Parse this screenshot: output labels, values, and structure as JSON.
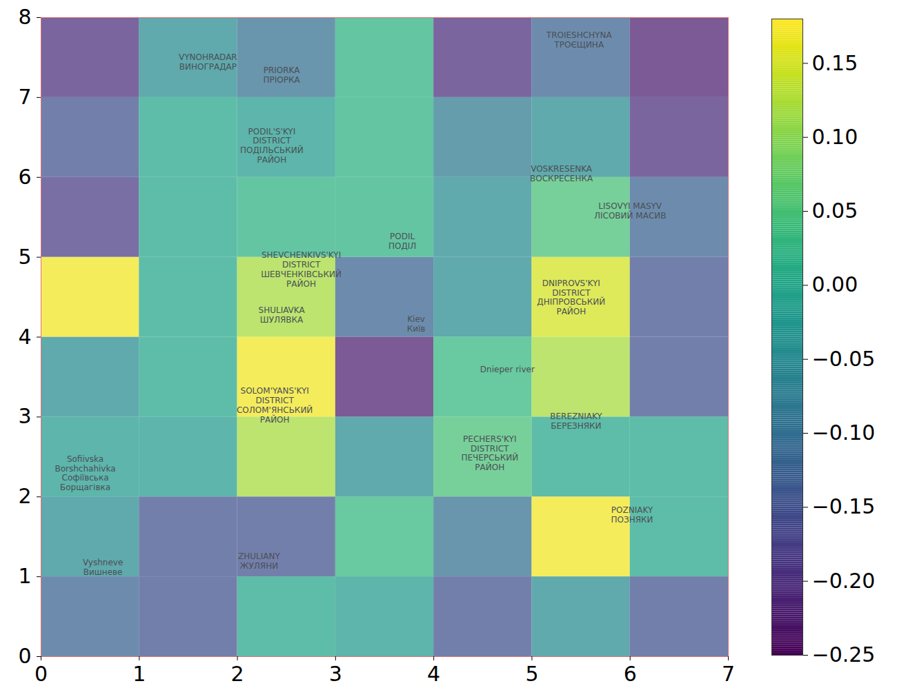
{
  "chart_data": {
    "type": "heatmap",
    "x_edges": [
      0,
      1,
      2,
      3,
      4,
      5,
      6,
      7
    ],
    "y_edges": [
      0,
      1,
      2,
      3,
      4,
      5,
      6,
      7,
      8
    ],
    "xlim": [
      0,
      7
    ],
    "ylim": [
      0,
      8
    ],
    "xticks": [
      0,
      1,
      2,
      3,
      4,
      5,
      6,
      7
    ],
    "yticks": [
      0,
      1,
      2,
      3,
      4,
      5,
      6,
      7,
      8
    ],
    "values": [
      [
        -0.12,
        -0.15,
        0.0,
        -0.02,
        -0.15,
        -0.05,
        -0.15
      ],
      [
        -0.05,
        -0.15,
        -0.15,
        0.03,
        -0.1,
        0.17,
        0.0
      ],
      [
        -0.02,
        -0.02,
        0.12,
        -0.05,
        0.05,
        0.0,
        0.0
      ],
      [
        -0.05,
        0.0,
        0.17,
        -0.22,
        0.03,
        0.12,
        -0.15
      ],
      [
        0.17,
        0.0,
        0.12,
        -0.12,
        -0.05,
        0.15,
        -0.15
      ],
      [
        -0.18,
        0.0,
        0.02,
        0.02,
        -0.05,
        0.05,
        -0.12
      ],
      [
        -0.15,
        0.0,
        -0.02,
        0.02,
        -0.08,
        -0.05,
        -0.2
      ],
      [
        -0.2,
        -0.05,
        -0.1,
        0.02,
        -0.2,
        -0.12,
        -0.22
      ]
    ],
    "colorbar": {
      "range": [
        -0.25,
        0.18
      ],
      "ticks": [
        {
          "value": -0.25,
          "label": "−0.25"
        },
        {
          "value": -0.2,
          "label": "−0.20"
        },
        {
          "value": -0.15,
          "label": "−0.15"
        },
        {
          "value": -0.1,
          "label": "−0.10"
        },
        {
          "value": -0.05,
          "label": "−0.05"
        },
        {
          "value": 0,
          "label": "0.00"
        },
        {
          "value": 0.05,
          "label": "0.05"
        },
        {
          "value": 0.1,
          "label": "0.10"
        },
        {
          "value": 0.15,
          "label": "0.15"
        }
      ]
    },
    "annotations": [
      {
        "text": "Kiev\nКиїв",
        "x": 3.82,
        "y": 4.17
      },
      {
        "text": "PODIL'S'KYI\nDISTRICT\nПОДІЛЬСЬКИЙ\nРАЙОН",
        "x": 2.35,
        "y": 6.4
      },
      {
        "text": "VYNOHRADAR\nВИНОГРАДАР",
        "x": 1.7,
        "y": 7.45
      },
      {
        "text": "PRIORKA\nПРІОРКА",
        "x": 2.45,
        "y": 7.28
      },
      {
        "text": "TROIESHCHYNA\nТРОЄЩИНА",
        "x": 5.48,
        "y": 7.72
      },
      {
        "text": "VOSKRESENKA\nВОСКРЕСЕНКА",
        "x": 5.3,
        "y": 6.05
      },
      {
        "text": "LISOVYI MASYV\nЛІСОВИЙ МАСИВ",
        "x": 6.0,
        "y": 5.58
      },
      {
        "text": "PODIL\nПОДІЛ",
        "x": 3.68,
        "y": 5.2
      },
      {
        "text": "SHEVCHENKIVS'KYI\nDISTRICT\nШЕВЧЕНКІВСЬКИЙ\nРАЙОН",
        "x": 2.65,
        "y": 4.85
      },
      {
        "text": "SHULIAVKA\nШУЛЯВКА",
        "x": 2.45,
        "y": 4.28
      },
      {
        "text": "SOLOM'YANS'KYI\nDISTRICT\nСОЛОМ'ЯНСЬКИЙ\nРАЙОН",
        "x": 2.38,
        "y": 3.15
      },
      {
        "text": "DNIPROVS'KYI\nDISTRICT\nДНІПРОВСЬКИЙ\nРАЙОН",
        "x": 5.4,
        "y": 4.5
      },
      {
        "text": "BEREZNIAKY\nБЕРЕЗНЯКИ",
        "x": 5.45,
        "y": 2.95
      },
      {
        "text": "PECHERS'KYI\nDISTRICT\nПЕЧЕРСЬКИЙ\nРАЙОН",
        "x": 4.57,
        "y": 2.55
      },
      {
        "text": "POZNIAKY\nПОЗНЯКИ",
        "x": 6.02,
        "y": 1.78
      },
      {
        "text": "ZHULIANY\nЖУЛЯНИ",
        "x": 2.22,
        "y": 1.2
      },
      {
        "text": "Sofiivska\nBorshchahivka\nСофіївська\nБорщагівка",
        "x": 0.45,
        "y": 2.3
      },
      {
        "text": "Vyshneve\nВишневе",
        "x": 0.63,
        "y": 1.12
      },
      {
        "text": "Dnieper river",
        "x": 4.75,
        "y": 3.6
      }
    ]
  }
}
